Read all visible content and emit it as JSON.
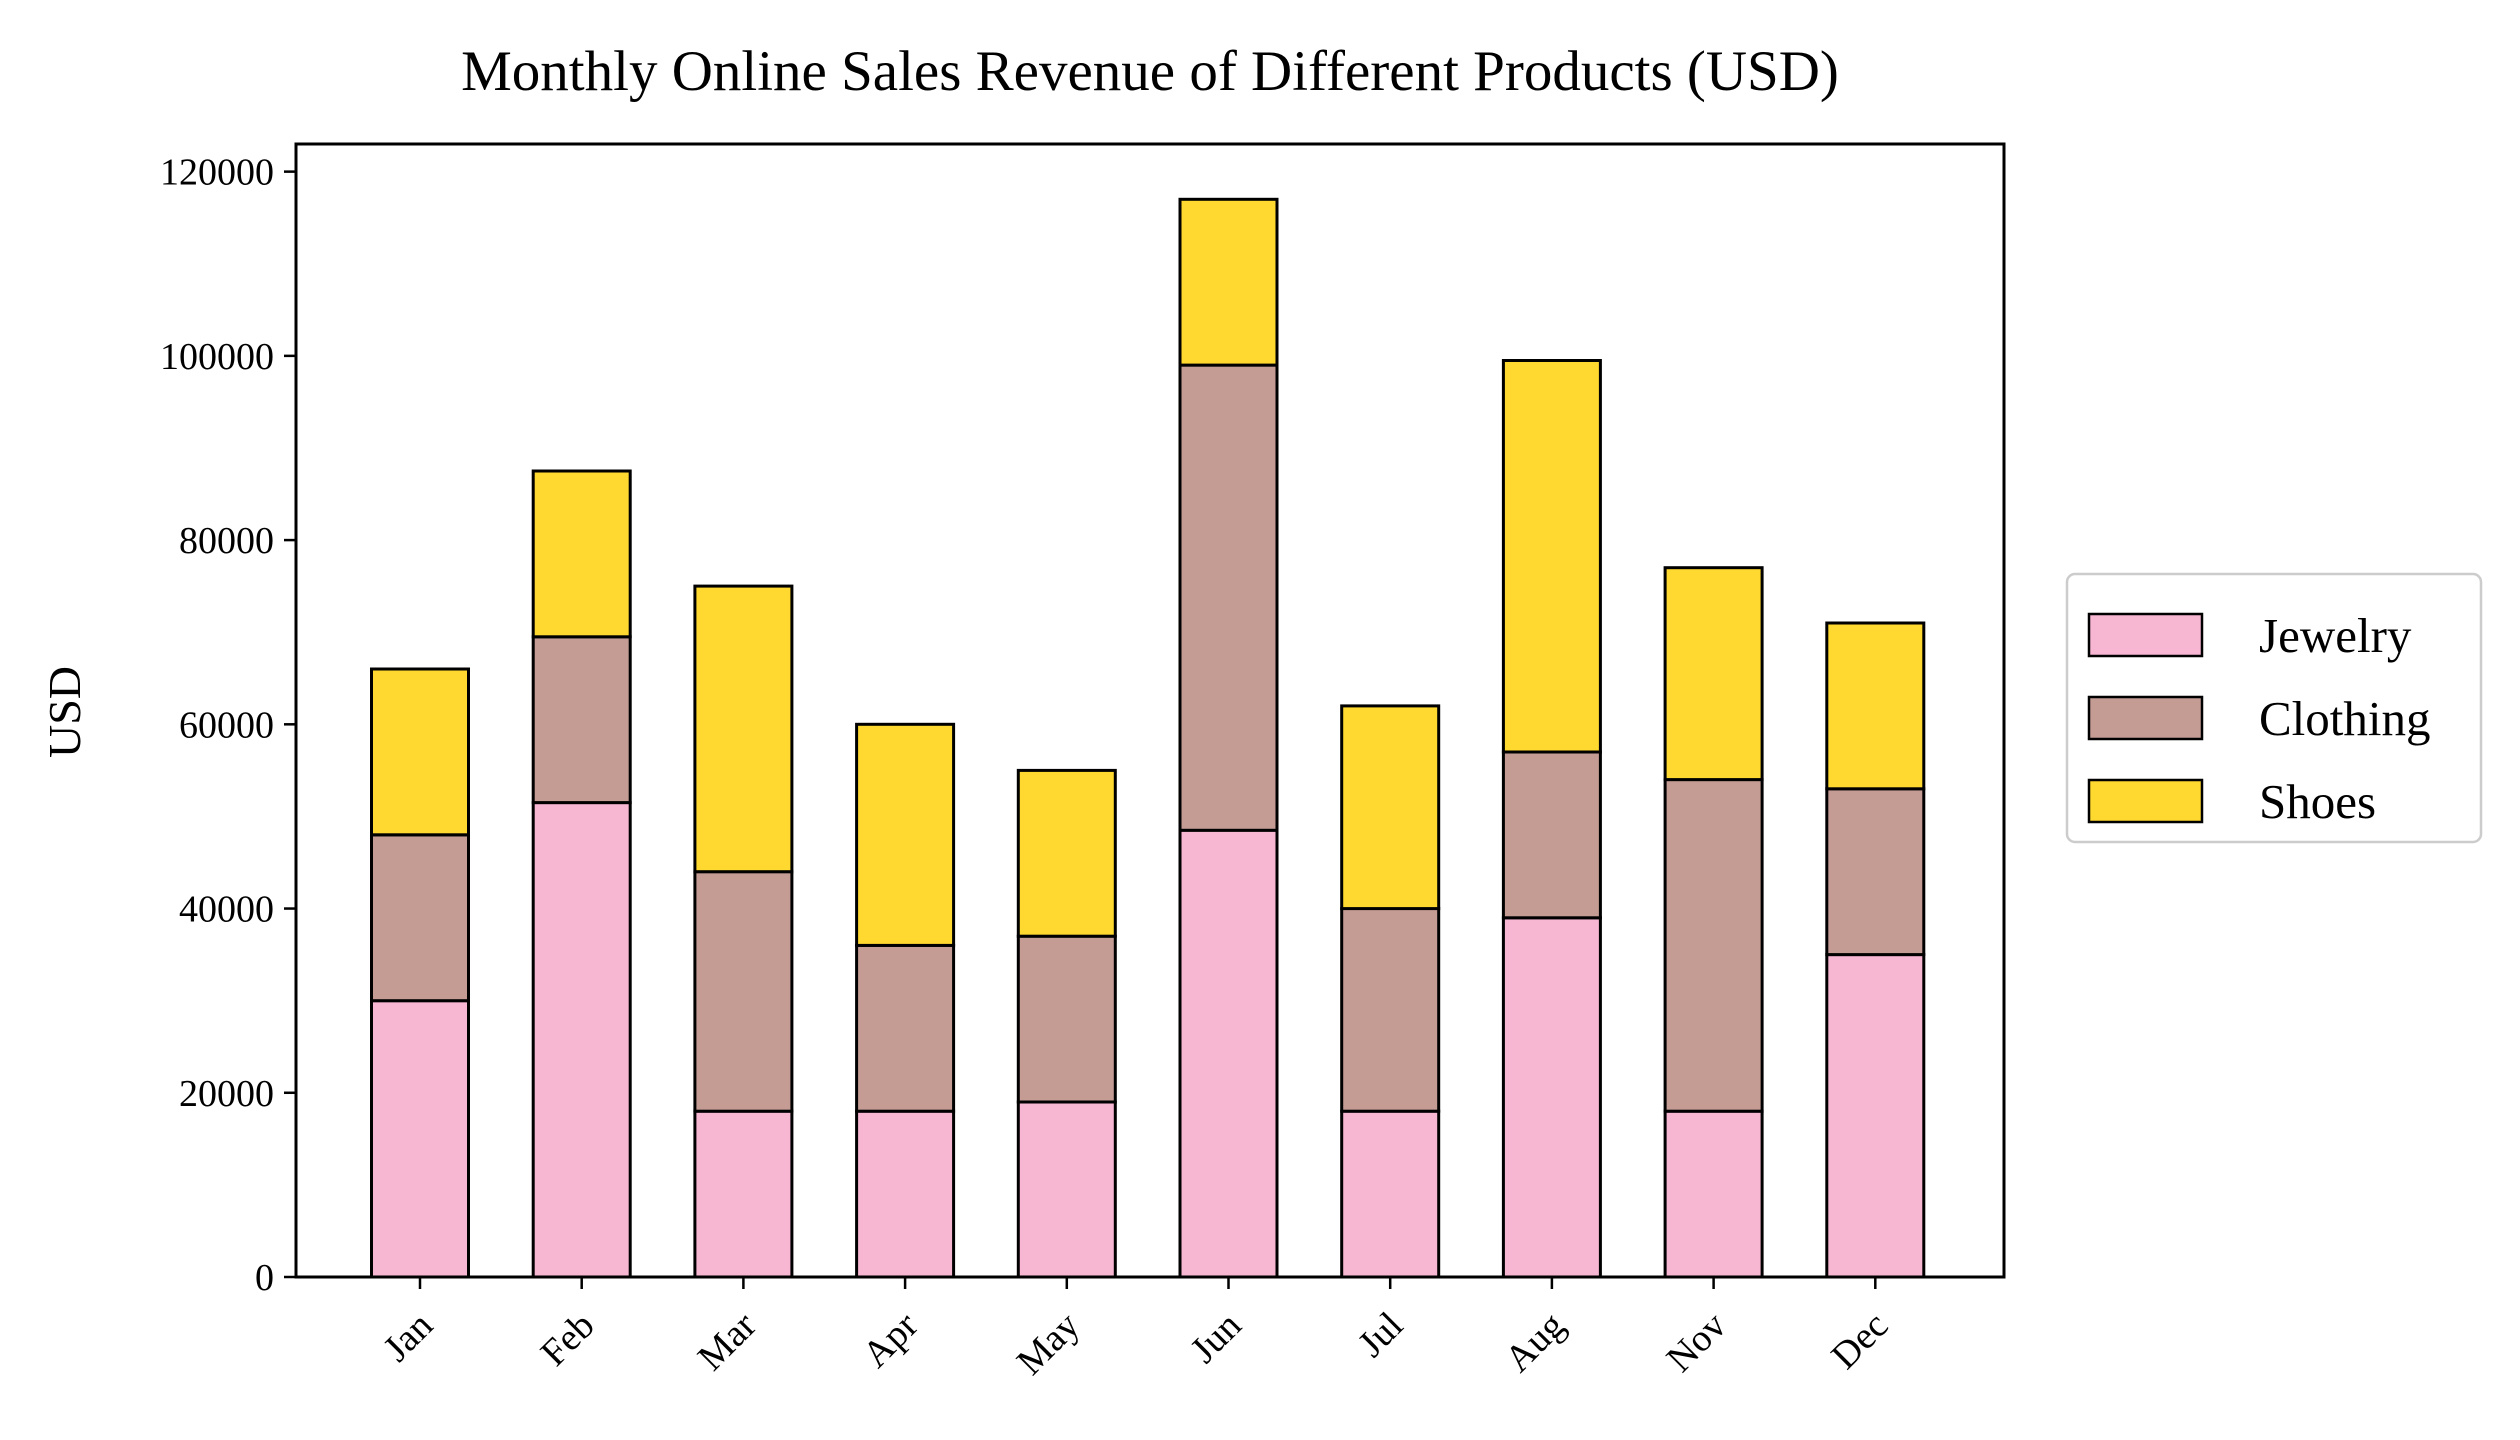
{
  "chart_data": {
    "type": "bar",
    "stacked": true,
    "title": "Monthly Online Sales Revenue of Different Products (USD)",
    "xlabel": "",
    "ylabel": "USD",
    "categories": [
      "Jan",
      "Feb",
      "Mar",
      "Apr",
      "May",
      "Jun",
      "Jul",
      "Aug",
      "Nov",
      "Dec"
    ],
    "series": [
      {
        "name": "Jewelry",
        "color": "#f7b6d2",
        "values": [
          30000,
          51500,
          18000,
          18000,
          19000,
          48500,
          18000,
          39000,
          18000,
          35000
        ]
      },
      {
        "name": "Clothing",
        "color": "#c49c94",
        "values": [
          18000,
          18000,
          26000,
          18000,
          18000,
          50500,
          22000,
          18000,
          36000,
          18000
        ]
      },
      {
        "name": "Shoes",
        "color": "#ffd92f",
        "values": [
          18000,
          18000,
          31000,
          24000,
          18000,
          18000,
          22000,
          42500,
          23000,
          18000
        ]
      }
    ],
    "ylim": [
      0,
      123000
    ],
    "yticks": [
      0,
      20000,
      40000,
      60000,
      80000,
      100000,
      120000
    ],
    "grid": false,
    "legend": {
      "position": "right"
    },
    "edgecolor": "#000000"
  }
}
